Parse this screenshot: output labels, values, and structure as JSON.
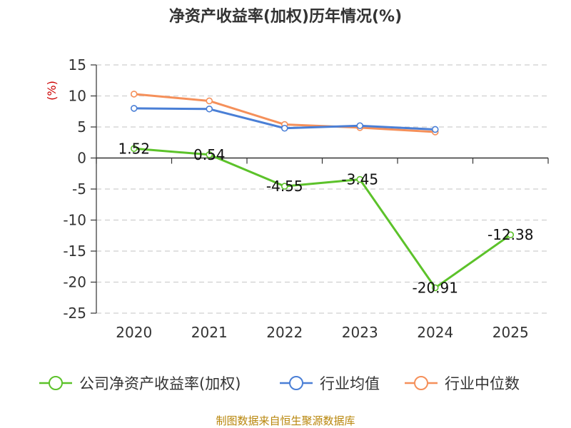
{
  "chart_data": {
    "type": "line",
    "title": "净资产收益率(加权)历年情况(%)",
    "ylabel": "(%)",
    "xlabel": "",
    "categories": [
      "2020",
      "2021",
      "2022",
      "2023",
      "2024",
      "2025"
    ],
    "y_ticks": [
      "15",
      "10",
      "5",
      "0",
      "-5",
      "-10",
      "-15",
      "-20",
      "-25"
    ],
    "ylim": [
      -25,
      15
    ],
    "grid": true,
    "legend_position": "bottom",
    "series": [
      {
        "name": "公司净资产收益率(加权)",
        "color": "#5cc22a",
        "values": [
          1.52,
          0.54,
          -4.55,
          -3.45,
          -20.91,
          -12.38
        ],
        "labels": [
          "1.52",
          "0.54",
          "-4.55",
          "-3.45",
          "-20.91",
          "-12.38"
        ]
      },
      {
        "name": "行业均值",
        "color": "#4a7fd6",
        "values": [
          8.0,
          7.9,
          4.8,
          5.2,
          4.6,
          null
        ]
      },
      {
        "name": "行业中位数",
        "color": "#f5905a",
        "values": [
          10.3,
          9.2,
          5.4,
          4.9,
          4.2,
          null
        ]
      }
    ],
    "source": "制图数据来自恒生聚源数据库"
  }
}
